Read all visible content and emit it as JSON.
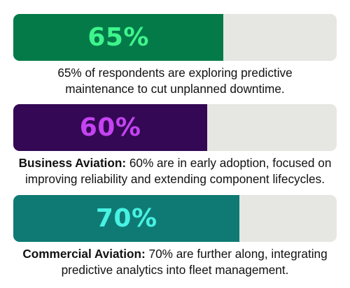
{
  "chart_data": {
    "type": "bar",
    "orientation": "horizontal",
    "xlim": [
      0,
      100
    ],
    "bars": [
      {
        "value": 65,
        "label": "65%",
        "fill_color": "#047a49",
        "label_color": "#3ef58d",
        "caption_bold": "",
        "caption_line1": "65% of respondents are exploring predictive",
        "caption_line2": "maintenance to cut unplanned downtime."
      },
      {
        "value": 60,
        "label": "60%",
        "fill_color": "#340854",
        "label_color": "#c443f2",
        "caption_bold": "Business Aviation:",
        "caption_line1": " 60% are in early adoption, focused on",
        "caption_line2": "improving reliability and extending component lifecycles."
      },
      {
        "value": 70,
        "label": "70%",
        "fill_color": "#0f7a74",
        "label_color": "#48f2e2",
        "caption_bold": "Commercial Aviation:",
        "caption_line1": " 70% are further along, integrating",
        "caption_line2": "predictive analytics into fleet management."
      }
    ]
  }
}
